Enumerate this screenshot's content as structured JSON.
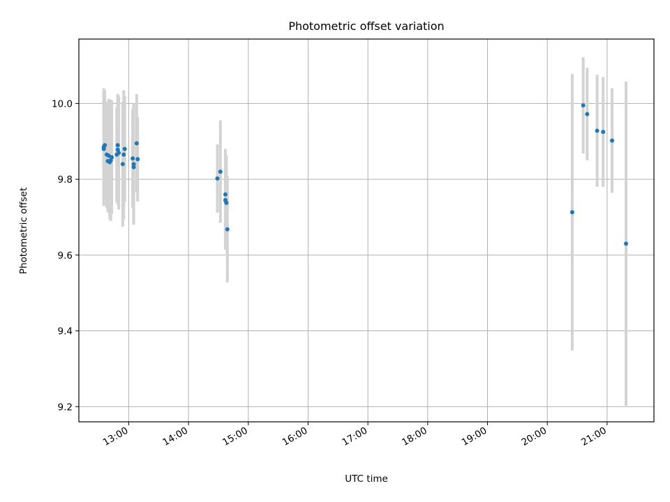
{
  "chart_data": {
    "type": "scatter",
    "title": "Photometric offset variation",
    "xlabel": "UTC time",
    "ylabel": "Photometric offset",
    "x_unit": "UTC time of day (HH:MM)",
    "xlim": [
      "12:10",
      "21:47"
    ],
    "ylim": [
      9.16,
      10.17
    ],
    "grid": true,
    "x_ticks": [
      "13:00",
      "14:00",
      "15:00",
      "16:00",
      "17:00",
      "18:00",
      "19:00",
      "20:00",
      "21:00"
    ],
    "y_ticks": [
      "9.2",
      "9.4",
      "9.6",
      "9.8",
      "10.0"
    ],
    "y_tick_values": [
      9.2,
      9.4,
      9.6,
      9.8,
      10.0
    ],
    "colors": {
      "point": "#1f77b4",
      "errorbar": "#d3d3d3",
      "grid": "#b0b0b0"
    },
    "points": [
      {
        "x": "12:35",
        "y": 9.88,
        "err": 0.15
      },
      {
        "x": "12:35",
        "y": 9.885,
        "err": 0.155
      },
      {
        "x": "12:36",
        "y": 9.89,
        "err": 0.145
      },
      {
        "x": "12:38",
        "y": 9.865,
        "err": 0.14
      },
      {
        "x": "12:39",
        "y": 9.848,
        "err": 0.135
      },
      {
        "x": "12:40",
        "y": 9.862,
        "err": 0.15
      },
      {
        "x": "12:41",
        "y": 9.845,
        "err": 0.15
      },
      {
        "x": "12:42",
        "y": 9.85,
        "err": 0.16
      },
      {
        "x": "12:43",
        "y": 9.858,
        "err": 0.15
      },
      {
        "x": "12:48",
        "y": 9.865,
        "err": 0.125
      },
      {
        "x": "12:49",
        "y": 9.878,
        "err": 0.145
      },
      {
        "x": "12:49",
        "y": 9.89,
        "err": 0.135
      },
      {
        "x": "12:50",
        "y": 9.87,
        "err": 0.15
      },
      {
        "x": "12:54",
        "y": 9.84,
        "err": 0.165
      },
      {
        "x": "12:55",
        "y": 9.865,
        "err": 0.17
      },
      {
        "x": "12:56",
        "y": 9.88,
        "err": 0.14
      },
      {
        "x": "13:04",
        "y": 9.855,
        "err": 0.13
      },
      {
        "x": "13:05",
        "y": 9.84,
        "err": 0.16
      },
      {
        "x": "13:05",
        "y": 9.832,
        "err": 0.15
      },
      {
        "x": "13:08",
        "y": 9.895,
        "err": 0.13
      },
      {
        "x": "13:09",
        "y": 9.853,
        "err": 0.112
      },
      {
        "x": "14:29",
        "y": 9.802,
        "err": 0.09
      },
      {
        "x": "14:32",
        "y": 9.82,
        "err": 0.135
      },
      {
        "x": "14:37",
        "y": 9.76,
        "err": 0.12
      },
      {
        "x": "14:37",
        "y": 9.745,
        "err": 0.13
      },
      {
        "x": "14:38",
        "y": 9.738,
        "err": 0.125
      },
      {
        "x": "14:39",
        "y": 9.668,
        "err": 0.14
      },
      {
        "x": "20:25",
        "y": 9.713,
        "err": 0.365
      },
      {
        "x": "20:36",
        "y": 9.995,
        "err": 0.127
      },
      {
        "x": "20:40",
        "y": 9.972,
        "err": 0.122
      },
      {
        "x": "20:50",
        "y": 9.928,
        "err": 0.148
      },
      {
        "x": "20:56",
        "y": 9.925,
        "err": 0.145
      },
      {
        "x": "21:05",
        "y": 9.902,
        "err": 0.138
      },
      {
        "x": "21:19",
        "y": 9.63,
        "err": 0.428
      }
    ]
  }
}
